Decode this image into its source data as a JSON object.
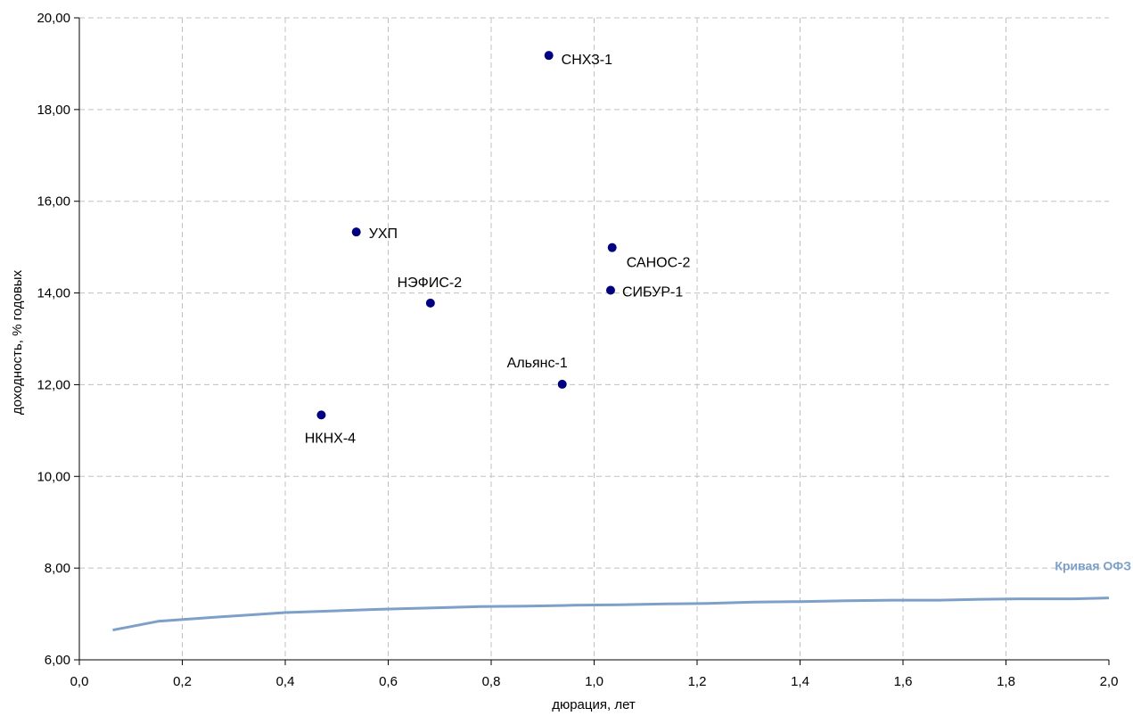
{
  "chart_data": {
    "type": "scatter",
    "title": "",
    "xlabel": "дюрация, лет",
    "ylabel": "доходность, % годовых",
    "xlim": [
      0,
      2.0
    ],
    "ylim": [
      6,
      20
    ],
    "grid": true,
    "x_ticks": [
      "0,0",
      "0,2",
      "0,4",
      "0,6",
      "0,8",
      "1,0",
      "1,2",
      "1,4",
      "1,6",
      "1,8",
      "2,0"
    ],
    "y_ticks": [
      "6,00",
      "8,00",
      "10,00",
      "12,00",
      "14,00",
      "16,00",
      "18,00",
      "20,00"
    ],
    "colors": {
      "points": "#000080",
      "curve": "#7da0c8",
      "grid": "#c0c0c0",
      "axis": "#000000"
    },
    "points": [
      {
        "name": "СНХЗ-1",
        "x": 0.912,
        "y": 19.18
      },
      {
        "name": "УХП",
        "x": 0.538,
        "y": 15.33
      },
      {
        "name": "САНОС-2",
        "x": 1.035,
        "y": 14.99
      },
      {
        "name": "СИБУР-1",
        "x": 1.032,
        "y": 14.06
      },
      {
        "name": "НЭФИС-2",
        "x": 0.682,
        "y": 13.78
      },
      {
        "name": "Альянс-1",
        "x": 0.938,
        "y": 12.01
      },
      {
        "name": "НКНХ-4",
        "x": 0.47,
        "y": 11.34
      }
    ],
    "series": [
      {
        "name": "Кривая ОФЗ",
        "x": [
          0.065,
          0.153,
          0.25,
          0.4,
          0.58,
          0.78,
          0.87,
          0.96,
          1.05,
          1.14,
          1.22,
          1.31,
          1.4,
          1.49,
          1.58,
          1.67,
          1.75,
          1.84,
          1.93,
          2.0
        ],
        "y": [
          6.65,
          6.84,
          6.92,
          7.03,
          7.1,
          7.16,
          7.17,
          7.19,
          7.2,
          7.22,
          7.23,
          7.26,
          7.27,
          7.29,
          7.3,
          7.3,
          7.32,
          7.33,
          7.33,
          7.35
        ]
      }
    ]
  }
}
